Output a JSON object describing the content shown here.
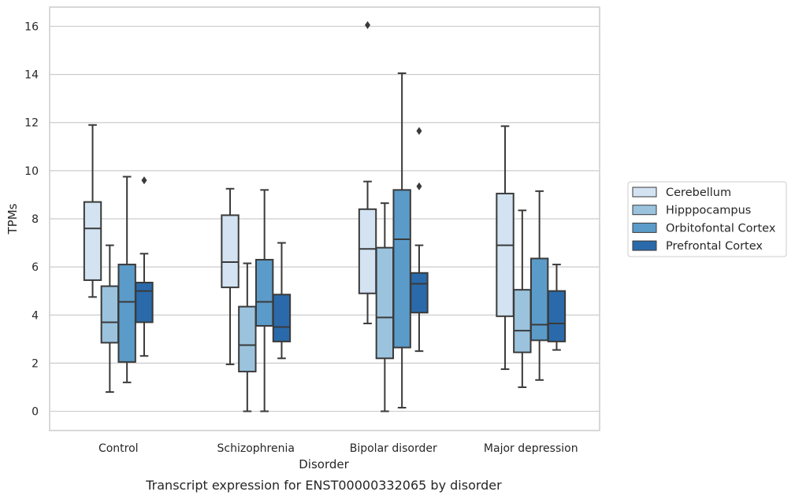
{
  "caption": "Transcript expression for ENST00000332065 by disorder",
  "chart_data": {
    "type": "box",
    "xlabel": "Disorder",
    "ylabel": "TPMs",
    "ylim": [
      -0.8,
      16.8
    ],
    "yticks": [
      0,
      2,
      4,
      6,
      8,
      10,
      12,
      14,
      16
    ],
    "grid": "horizontal",
    "legend_position": "right",
    "categories": [
      "Control",
      "Schizophrenia",
      "Bipolar disorder",
      "Major depression"
    ],
    "series": [
      {
        "name": "Cerebellum",
        "color": "#d3e3f2",
        "boxes": [
          {
            "whislo": 4.75,
            "q1": 5.45,
            "med": 7.6,
            "q3": 8.7,
            "whishi": 11.9,
            "fliers": []
          },
          {
            "whislo": 1.95,
            "q1": 5.15,
            "med": 6.2,
            "q3": 8.15,
            "whishi": 9.25,
            "fliers": []
          },
          {
            "whislo": 3.65,
            "q1": 4.9,
            "med": 6.75,
            "q3": 8.4,
            "whishi": 9.55,
            "fliers": [
              16.05
            ]
          },
          {
            "whislo": 1.75,
            "q1": 3.95,
            "med": 6.9,
            "q3": 9.05,
            "whishi": 11.85,
            "fliers": []
          }
        ]
      },
      {
        "name": "Hipppocampus",
        "color": "#9bc3de",
        "boxes": [
          {
            "whislo": 0.8,
            "q1": 2.85,
            "med": 3.7,
            "q3": 5.2,
            "whishi": 6.9,
            "fliers": []
          },
          {
            "whislo": 0.0,
            "q1": 1.65,
            "med": 2.75,
            "q3": 4.35,
            "whishi": 6.15,
            "fliers": []
          },
          {
            "whislo": 0.0,
            "q1": 2.2,
            "med": 3.9,
            "q3": 6.8,
            "whishi": 8.65,
            "fliers": []
          },
          {
            "whislo": 1.0,
            "q1": 2.45,
            "med": 3.35,
            "q3": 5.05,
            "whishi": 8.35,
            "fliers": []
          }
        ]
      },
      {
        "name": "Orbitofontal Cortex",
        "color": "#5b9bc9",
        "boxes": [
          {
            "whislo": 1.2,
            "q1": 2.05,
            "med": 4.55,
            "q3": 6.1,
            "whishi": 9.75,
            "fliers": []
          },
          {
            "whislo": 0.0,
            "q1": 3.55,
            "med": 4.55,
            "q3": 6.3,
            "whishi": 9.2,
            "fliers": []
          },
          {
            "whislo": 0.15,
            "q1": 2.65,
            "med": 7.15,
            "q3": 9.2,
            "whishi": 14.05,
            "fliers": []
          },
          {
            "whislo": 1.3,
            "q1": 2.95,
            "med": 3.6,
            "q3": 6.35,
            "whishi": 9.15,
            "fliers": []
          }
        ]
      },
      {
        "name": "Prefrontal Cortex",
        "color": "#2a6aaa",
        "boxes": [
          {
            "whislo": 2.3,
            "q1": 3.7,
            "med": 5.0,
            "q3": 5.35,
            "whishi": 6.55,
            "fliers": [
              9.6
            ]
          },
          {
            "whislo": 2.2,
            "q1": 2.9,
            "med": 3.5,
            "q3": 4.85,
            "whishi": 7.0,
            "fliers": []
          },
          {
            "whislo": 2.5,
            "q1": 4.1,
            "med": 5.3,
            "q3": 5.75,
            "whishi": 6.9,
            "fliers": [
              9.35,
              11.65
            ]
          },
          {
            "whislo": 2.55,
            "q1": 2.9,
            "med": 3.65,
            "q3": 5.0,
            "whishi": 6.1,
            "fliers": []
          }
        ]
      }
    ]
  }
}
